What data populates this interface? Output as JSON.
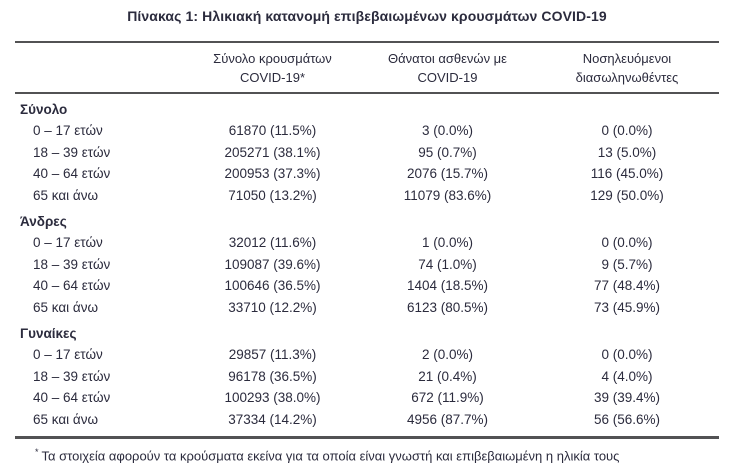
{
  "title": "Πίνακας 1: Ηλικιακή κατανομή επιβεβαιωμένων κρουσμάτων COVID-19",
  "colors": {
    "text": "#2b2b3d",
    "rule": "#525254",
    "background": "#ffffff"
  },
  "table": {
    "headers": [
      {
        "line1": "Σύνολο κρουσμάτων",
        "line2": "COVID-19*"
      },
      {
        "line1": "Θάνατοι ασθενών με",
        "line2": "COVID-19"
      },
      {
        "line1": "Νοσηλευόμενοι",
        "line2": "διασωληνωθέντες"
      }
    ],
    "sections": [
      {
        "label": "Σύνολο",
        "rows": [
          {
            "age": "0 – 17 ετών",
            "cases": "61870 (11.5%)",
            "deaths": "3 (0.0%)",
            "intubated": "0 (0.0%)"
          },
          {
            "age": "18 – 39 ετών",
            "cases": "205271 (38.1%)",
            "deaths": "95 (0.7%)",
            "intubated": "13 (5.0%)"
          },
          {
            "age": "40 – 64 ετών",
            "cases": "200953 (37.3%)",
            "deaths": "2076 (15.7%)",
            "intubated": "116 (45.0%)"
          },
          {
            "age": "65 και άνω",
            "cases": "71050 (13.2%)",
            "deaths": "11079 (83.6%)",
            "intubated": "129 (50.0%)"
          }
        ]
      },
      {
        "label": "Άνδρες",
        "rows": [
          {
            "age": "0 – 17 ετών",
            "cases": "32012 (11.6%)",
            "deaths": "1 (0.0%)",
            "intubated": "0 (0.0%)"
          },
          {
            "age": "18 – 39 ετών",
            "cases": "109087 (39.6%)",
            "deaths": "74 (1.0%)",
            "intubated": "9 (5.7%)"
          },
          {
            "age": "40 – 64 ετών",
            "cases": "100646 (36.5%)",
            "deaths": "1404 (18.5%)",
            "intubated": "77 (48.4%)"
          },
          {
            "age": "65 και άνω",
            "cases": "33710 (12.2%)",
            "deaths": "6123 (80.5%)",
            "intubated": "73 (45.9%)"
          }
        ]
      },
      {
        "label": "Γυναίκες",
        "rows": [
          {
            "age": "0 – 17 ετών",
            "cases": "29857 (11.3%)",
            "deaths": "2 (0.0%)",
            "intubated": "0 (0.0%)"
          },
          {
            "age": "18 – 39 ετών",
            "cases": "96178 (36.5%)",
            "deaths": "21 (0.4%)",
            "intubated": "4 (4.0%)"
          },
          {
            "age": "40 – 64 ετών",
            "cases": "100293 (38.0%)",
            "deaths": "672 (11.9%)",
            "intubated": "39 (39.4%)"
          },
          {
            "age": "65 και άνω",
            "cases": "37334 (14.2%)",
            "deaths": "4956 (87.7%)",
            "intubated": "56 (56.6%)"
          }
        ]
      }
    ]
  },
  "footnote": {
    "marker": "*",
    "text": "Τα στοιχεία αφορούν τα κρούσματα εκείνα για τα οποία είναι γνωστή και επιβεβαιωμένη η ηλικία τους"
  }
}
